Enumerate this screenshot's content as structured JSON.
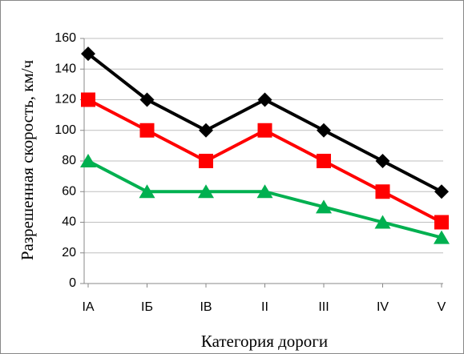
{
  "chart_data": {
    "type": "line",
    "xlabel": "Категория  дороги",
    "ylabel": "Разрешенная скорость, км/ч",
    "categories": [
      "IА",
      "IБ",
      "IВ",
      "II",
      "III",
      "IV",
      "V"
    ],
    "series": [
      {
        "color": "#000000",
        "marker": "diamond",
        "values": [
          150,
          120,
          100,
          120,
          100,
          80,
          60
        ]
      },
      {
        "color": "#ff0000",
        "marker": "square",
        "values": [
          120,
          100,
          80,
          100,
          80,
          60,
          40
        ]
      },
      {
        "color": "#00b050",
        "marker": "triangle",
        "values": [
          80,
          60,
          60,
          60,
          50,
          40,
          30
        ]
      }
    ],
    "ylim": [
      0,
      160
    ],
    "yticks": [
      0,
      20,
      40,
      60,
      80,
      100,
      120,
      140,
      160
    ],
    "grid": true
  }
}
